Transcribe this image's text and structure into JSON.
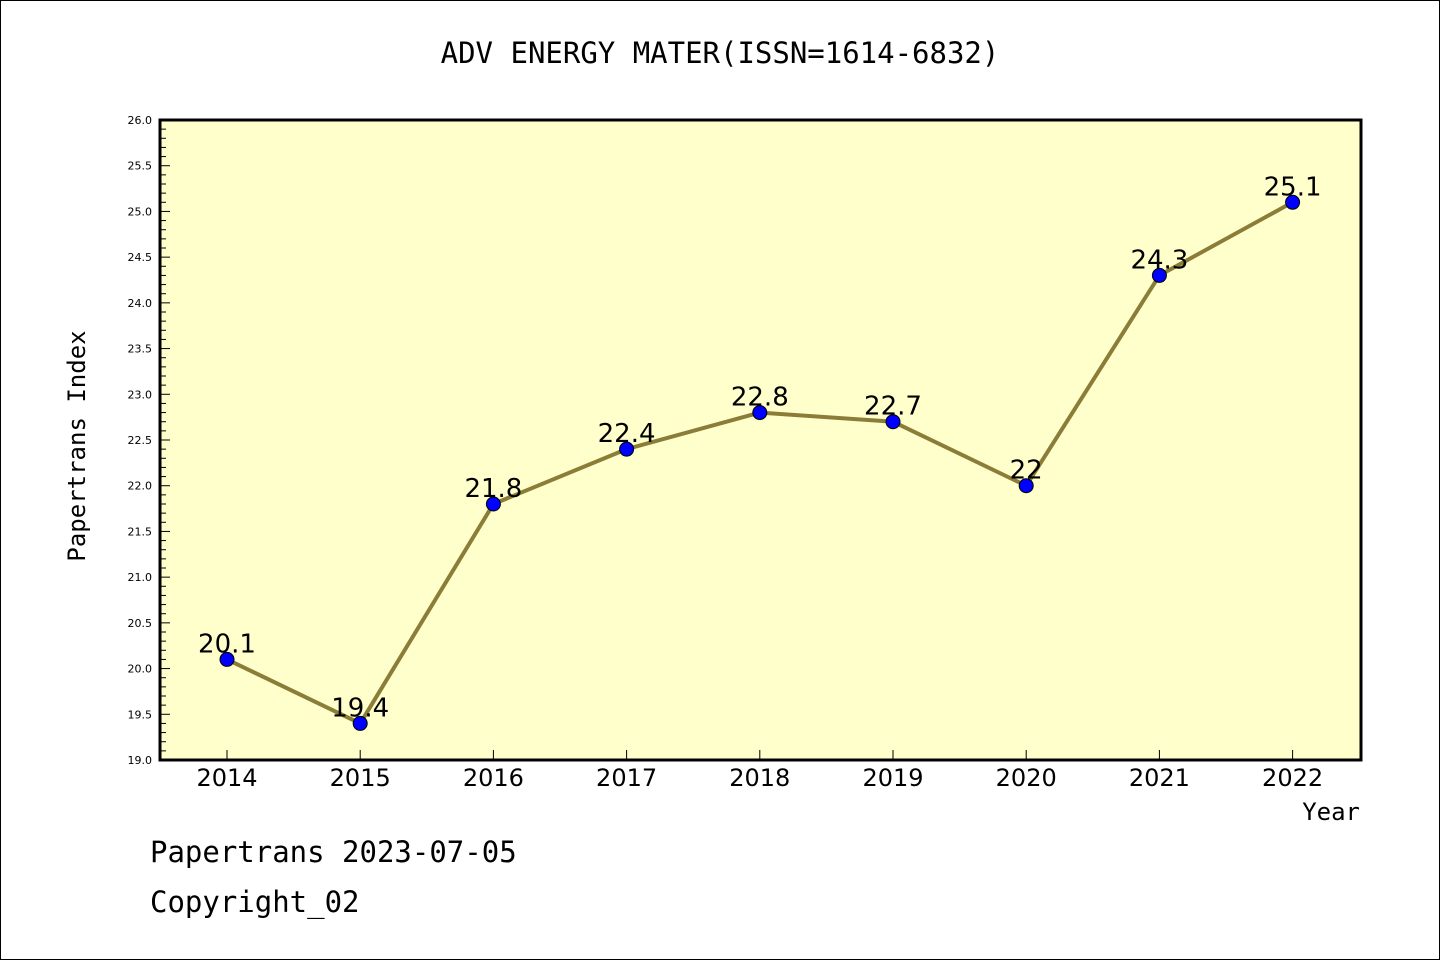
{
  "chart_data": {
    "type": "line",
    "title": "ADV ENERGY MATER(ISSN=1614-6832)",
    "xlabel": "Year",
    "ylabel": "Papertrans Index",
    "x": [
      "2014",
      "2015",
      "2016",
      "2017",
      "2018",
      "2019",
      "2020",
      "2021",
      "2022"
    ],
    "series": [
      {
        "values": [
          20.1,
          19.4,
          21.8,
          22.4,
          22.8,
          22.7,
          22.0,
          24.3,
          25.1
        ],
        "data_labels": [
          "20.1",
          "19.4",
          "21.8",
          "22.4",
          "22.8",
          "22.7",
          "22",
          "24.3",
          "25.1"
        ]
      }
    ],
    "ylim": [
      19.0,
      26.0
    ],
    "yticks": [
      "19.0",
      "19.5",
      "20.0",
      "20.5",
      "21.0",
      "21.5",
      "22.0",
      "22.5",
      "23.0",
      "23.5",
      "24.0",
      "24.5",
      "25.0",
      "25.5",
      "26.0"
    ],
    "grid": false,
    "colors": {
      "plot_background": "#ffffcc",
      "line": "#8b7d37",
      "marker": "#0000ff"
    }
  },
  "footer": {
    "line1": "Papertrans 2023-07-05",
    "line2": "Copyright_02"
  }
}
